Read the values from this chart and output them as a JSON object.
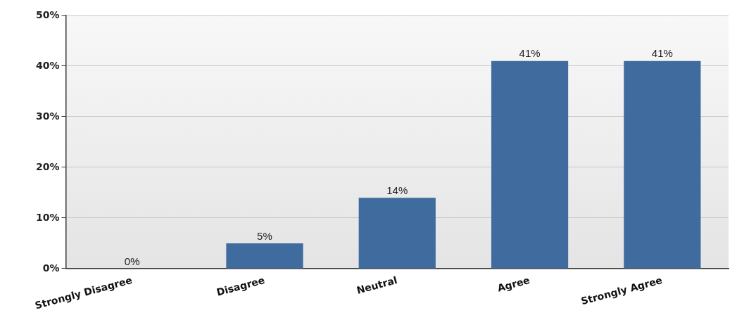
{
  "chart_data": {
    "type": "bar",
    "categories": [
      "Strongly Disagree",
      "Disagree",
      "Neutral",
      "Agree",
      "Strongly Agree"
    ],
    "values": [
      0,
      5,
      14,
      41,
      41
    ],
    "value_labels": [
      "0%",
      "5%",
      "14%",
      "41%",
      "41%"
    ],
    "color": "#3f6b9f",
    "ylim": [
      0,
      50
    ],
    "yticks": [
      {
        "value": 0,
        "label": "0%"
      },
      {
        "value": 10,
        "label": "10%"
      },
      {
        "value": 20,
        "label": "20%"
      },
      {
        "value": 30,
        "label": "30%"
      },
      {
        "value": 40,
        "label": "40%"
      },
      {
        "value": 50,
        "label": "50%"
      }
    ],
    "grid": "y",
    "legend": false
  }
}
